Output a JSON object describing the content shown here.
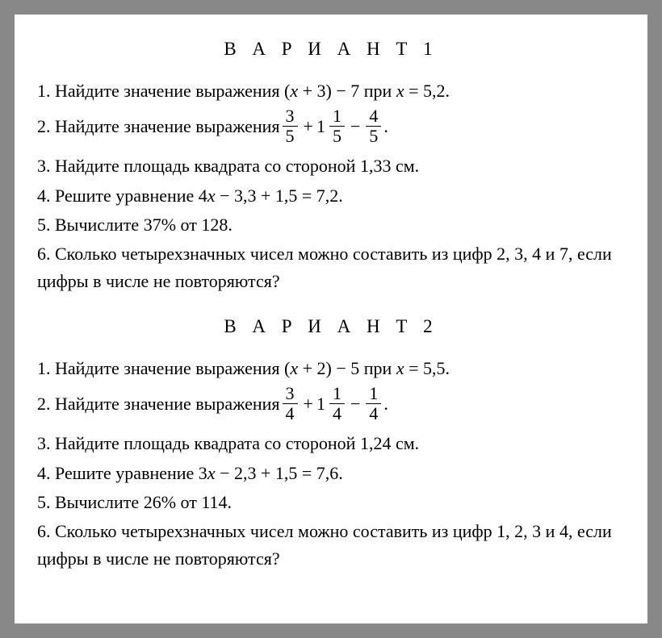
{
  "variant1": {
    "title": "В А Р И А Н Т  1",
    "p1_prefix": "1. Найдите значение выражения (",
    "p1_var1": "x",
    "p1_mid": " + 3) − 7 при ",
    "p1_var2": "x",
    "p1_suffix": " = 5,2.",
    "p2_prefix": "2. Найдите значение выражения ",
    "p2_f1n": "3",
    "p2_f1d": "5",
    "p2_op1": "+",
    "p2_w1": "1",
    "p2_f2n": "1",
    "p2_f2d": "5",
    "p2_op2": "−",
    "p2_f3n": "4",
    "p2_f3d": "5",
    "p2_suffix": " .",
    "p3": "3. Найдите площадь квадрата со стороной 1,33 см.",
    "p4_prefix": "4. Решите уравнение 4",
    "p4_var": "x",
    "p4_suffix": " − 3,3 + 1,5 = 7,2.",
    "p5": "5. Вычислите 37% от 128.",
    "p6": "6. Сколько четырехзначных чисел можно составить из цифр 2, 3, 4 и 7, если цифры в числе не повторяются?"
  },
  "variant2": {
    "title": "В А Р И А Н Т  2",
    "p1_prefix": "1. Найдите значение выражения (",
    "p1_var1": "x",
    "p1_mid": " + 2) − 5 при ",
    "p1_var2": "x",
    "p1_suffix": " = 5,5.",
    "p2_prefix": "2. Найдите значение выражения ",
    "p2_f1n": "3",
    "p2_f1d": "4",
    "p2_op1": "+",
    "p2_w1": "1",
    "p2_f2n": "1",
    "p2_f2d": "4",
    "p2_op2": "−",
    "p2_f3n": "1",
    "p2_f3d": "4",
    "p2_suffix": " .",
    "p3": "3. Найдите площадь квадрата со стороной 1,24 см.",
    "p4_prefix": "4. Решите уравнение  3",
    "p4_var": "x",
    "p4_suffix": " − 2,3 + 1,5 = 7,6.",
    "p5": "5. Вычислите 26% от 114.",
    "p6": "6. Сколько четырехзначных чисел можно составить из цифр  1, 2, 3 и 4, если цифры в числе не повторяются?"
  }
}
